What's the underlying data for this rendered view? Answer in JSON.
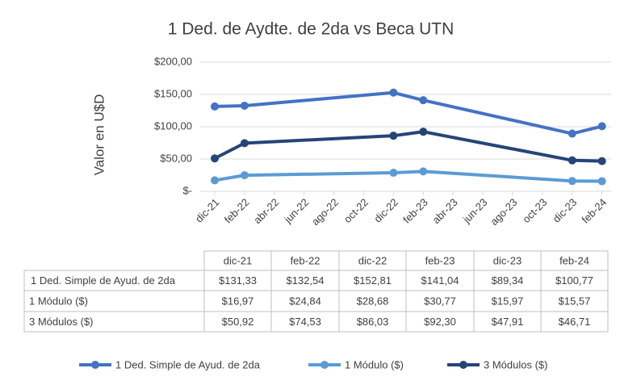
{
  "chart_data": {
    "type": "line",
    "title": "1 Ded. de Aydte. de 2da vs Beca UTN",
    "y_label": "Valor en U$D",
    "x": [
      "dic-21",
      "feb-22",
      "dic-22",
      "feb-23",
      "dic-23",
      "feb-24"
    ],
    "xticks": [
      "dic-21",
      "feb-22",
      "abr-22",
      "jun-22",
      "ago-22",
      "oct-22",
      "dic-22",
      "feb-23",
      "abr-23",
      "jun-23",
      "ago-23",
      "oct-23",
      "dic-23",
      "feb-24"
    ],
    "ylim": [
      0,
      200
    ],
    "yticks": [
      {
        "value": 0,
        "label": "$-"
      },
      {
        "value": 50,
        "label": "$50,00"
      },
      {
        "value": 100,
        "label": "$100,00"
      },
      {
        "value": 150,
        "label": "$150,00"
      },
      {
        "value": 200,
        "label": "$200,00"
      }
    ],
    "grid": true,
    "series": [
      {
        "name": "1 Ded. Simple de Ayud. de 2da",
        "color": "#4472c4",
        "values": [
          131.33,
          132.54,
          152.81,
          141.04,
          89.34,
          100.77
        ],
        "value_labels": [
          "$131,33",
          "$132,54",
          "$152,81",
          "$141,04",
          "$89,34",
          "$100,77"
        ]
      },
      {
        "name": "1 Módulo ($)",
        "color": "#5b9bd5",
        "values": [
          16.97,
          24.84,
          28.68,
          30.77,
          15.97,
          15.57
        ],
        "value_labels": [
          "$16,97",
          "$24,84",
          "$28,68",
          "$30,77",
          "$15,97",
          "$15,57"
        ]
      },
      {
        "name": "3 Módulos ($)",
        "color": "#264478",
        "values": [
          50.92,
          74.53,
          86.03,
          92.3,
          47.91,
          46.71
        ],
        "value_labels": [
          "$50,92",
          "$74,53",
          "$86,03",
          "$92,30",
          "$47,91",
          "$46,71"
        ]
      }
    ]
  }
}
